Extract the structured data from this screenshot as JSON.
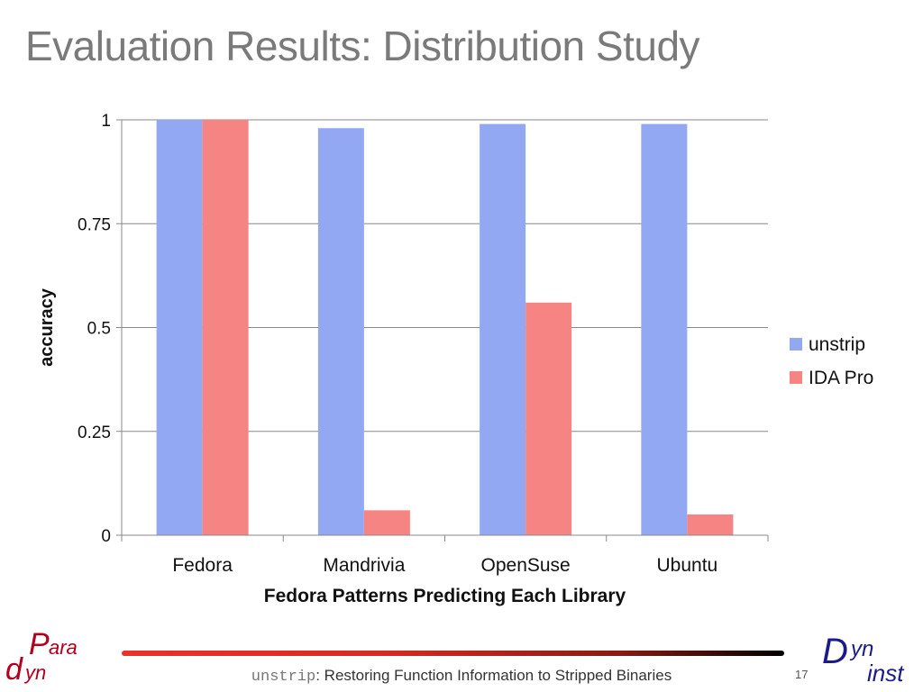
{
  "slide": {
    "title": "Evaluation Results: Distribution Study",
    "footer_command": "unstrip",
    "footer_text": ": Restoring Function Information to Stripped Binaries",
    "page_number": "17"
  },
  "logos": {
    "left": {
      "big_letter_top": "P",
      "text_top": "ara",
      "big_letter_bottom": "d",
      "text_bottom": "yn",
      "color": "#b0001e"
    },
    "right": {
      "big_letter": "D",
      "text_top": "yn",
      "text_bottom": "inst",
      "color": "#1a1a8c"
    }
  },
  "colors": {
    "unstrip": "#92a8f2",
    "ida_pro": "#f58483",
    "gridline": "#888888",
    "axis": "#888888",
    "footer_bar_start": "#e8322a",
    "footer_bar_end": "#000000"
  },
  "chart_data": {
    "type": "bar",
    "xlabel": "Fedora Patterns Predicting Each Library",
    "ylabel": "accuracy",
    "categories": [
      "Fedora",
      "Mandrivia",
      "OpenSuse",
      "Ubuntu"
    ],
    "series": [
      {
        "name": "unstrip",
        "values": [
          1.0,
          0.98,
          0.99,
          0.99
        ]
      },
      {
        "name": "IDA Pro",
        "values": [
          1.0,
          0.06,
          0.56,
          0.05
        ]
      }
    ],
    "ylim": [
      0,
      1
    ],
    "yticks": [
      0,
      0.25,
      0.5,
      0.75,
      1
    ],
    "ytick_labels": [
      "0",
      "0.25",
      "0.5",
      "0.75",
      "1"
    ],
    "grid": true,
    "legend_position": "right"
  }
}
